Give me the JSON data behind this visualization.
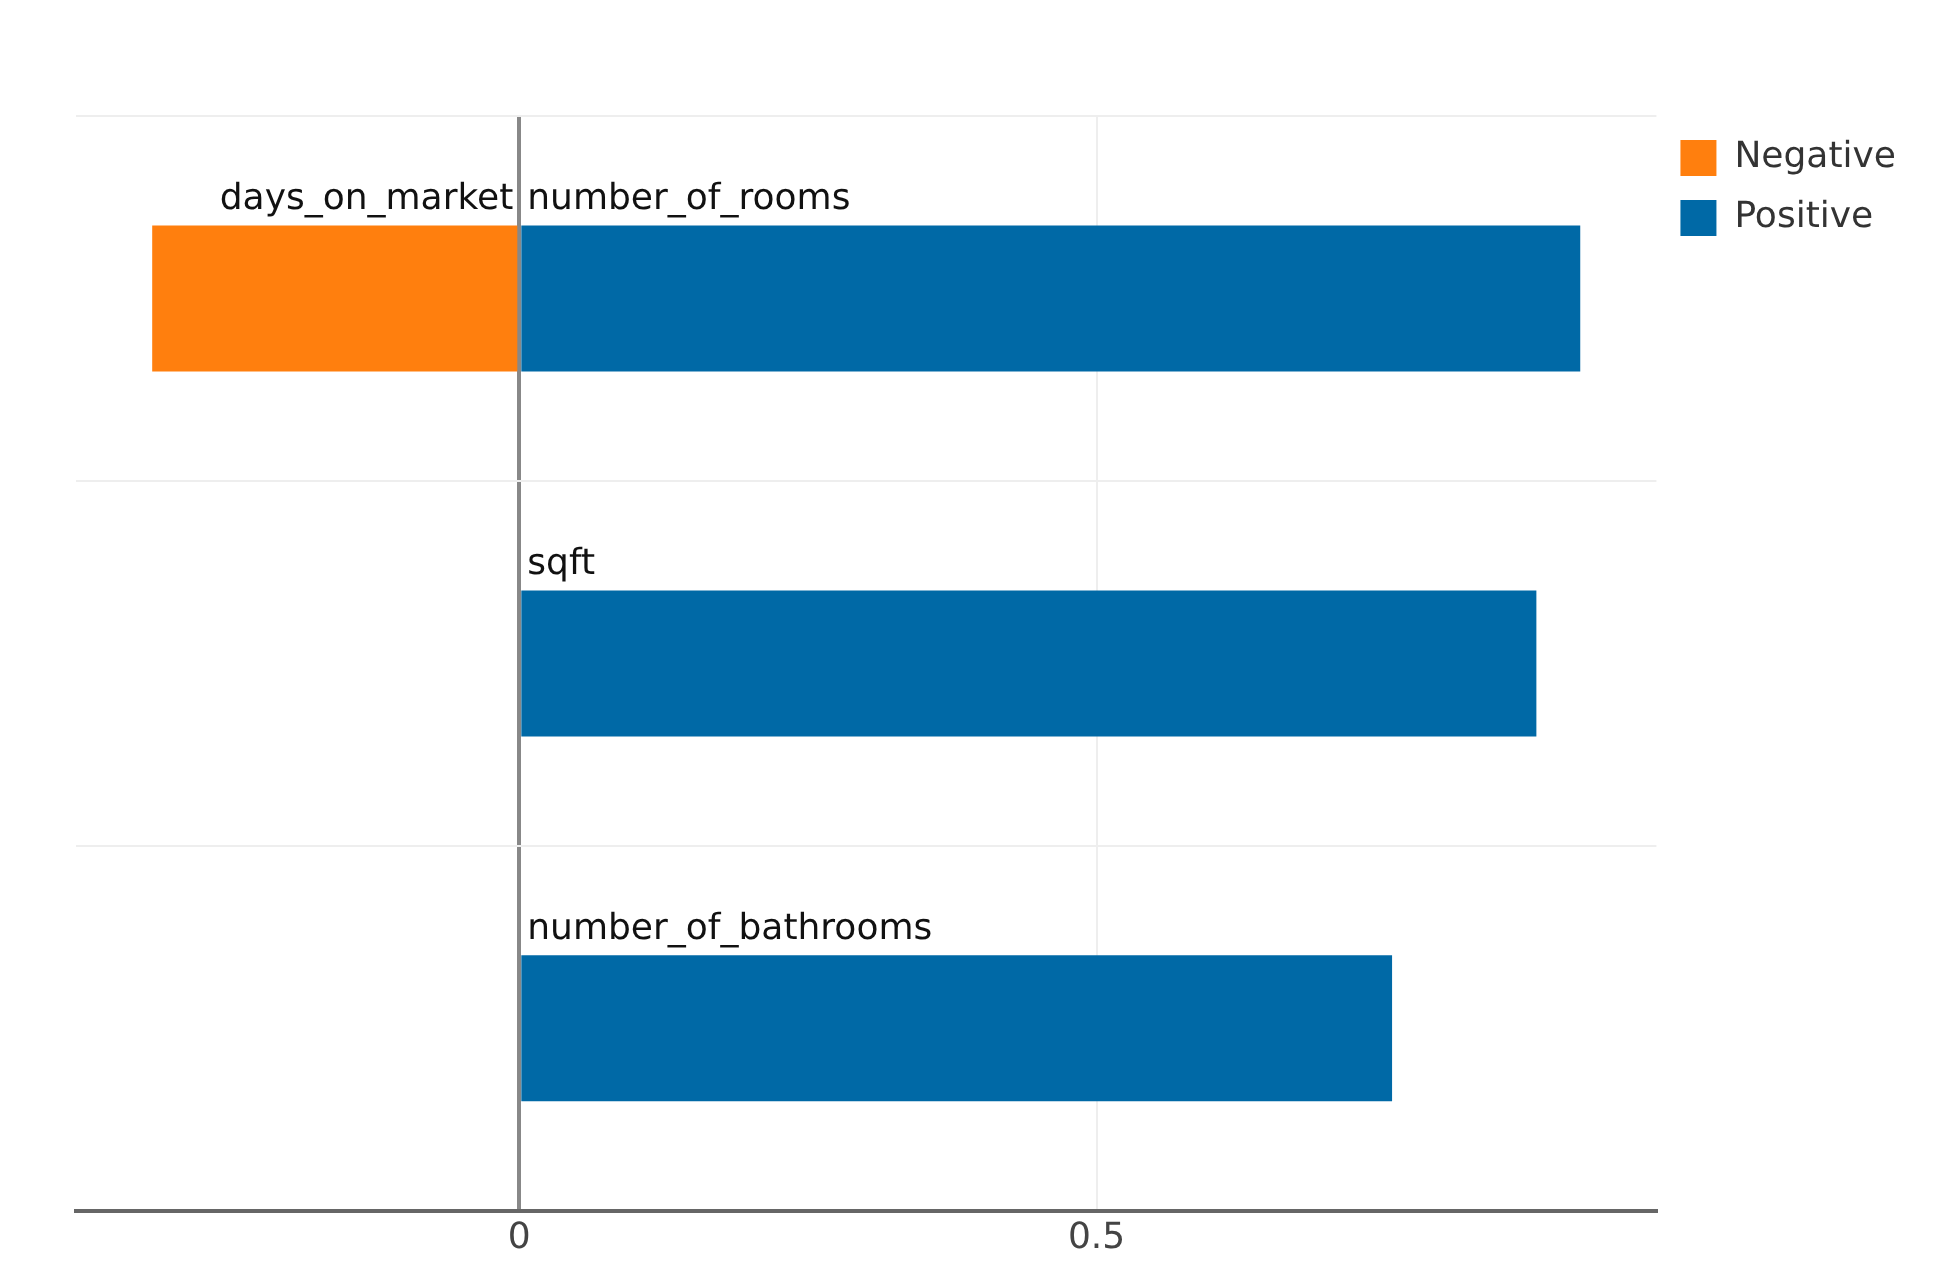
{
  "chart_data": {
    "type": "bar",
    "orientation": "horizontal",
    "stacked": true,
    "categories": [
      null,
      null,
      null
    ],
    "series": [
      {
        "name": "Negative",
        "color": "#ff7f0e",
        "values": [
          -0.318,
          null,
          null
        ],
        "value_labels": [
          "days_on_market",
          null,
          null
        ]
      },
      {
        "name": "Positive",
        "color": "#0069a6",
        "values": [
          0.919,
          0.881,
          0.756
        ],
        "value_labels": [
          "number_of_rooms",
          "sqft",
          "number_of_bathrooms"
        ]
      }
    ],
    "xlim": [
      -0.384,
      0.985
    ],
    "xticks": [
      0,
      0.5
    ],
    "grid": true,
    "legend": "top right"
  }
}
